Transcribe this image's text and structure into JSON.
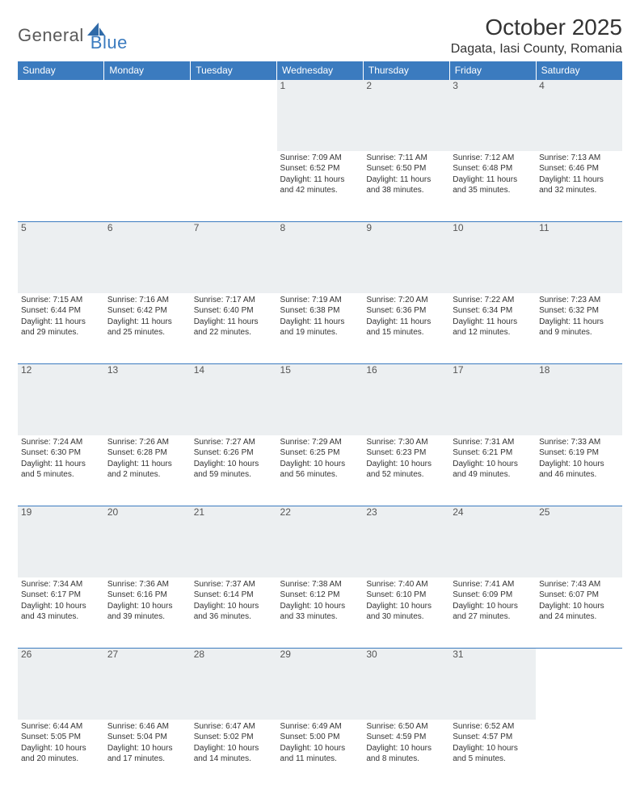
{
  "logo": {
    "general": "General",
    "blue": "Blue"
  },
  "title": "October 2025",
  "location": "Dagata, Iasi County, Romania",
  "colors": {
    "header_bg": "#3b7bbf",
    "header_text": "#ffffff",
    "daynum_bg": "#eceff1",
    "border": "#3b7bbf",
    "body_text": "#333333",
    "logo_gray": "#5a5a5a",
    "logo_blue": "#3b7bbf",
    "background": "#ffffff"
  },
  "typography": {
    "title_fontsize": 28,
    "location_fontsize": 16,
    "dayheader_fontsize": 12,
    "daynum_fontsize": 12,
    "cell_fontsize": 10
  },
  "day_headers": [
    "Sunday",
    "Monday",
    "Tuesday",
    "Wednesday",
    "Thursday",
    "Friday",
    "Saturday"
  ],
  "weeks": [
    {
      "nums": [
        "",
        "",
        "",
        "1",
        "2",
        "3",
        "4"
      ],
      "cells": [
        "",
        "",
        "",
        "Sunrise: 7:09 AM\nSunset: 6:52 PM\nDaylight: 11 hours and 42 minutes.",
        "Sunrise: 7:11 AM\nSunset: 6:50 PM\nDaylight: 11 hours and 38 minutes.",
        "Sunrise: 7:12 AM\nSunset: 6:48 PM\nDaylight: 11 hours and 35 minutes.",
        "Sunrise: 7:13 AM\nSunset: 6:46 PM\nDaylight: 11 hours and 32 minutes."
      ]
    },
    {
      "nums": [
        "5",
        "6",
        "7",
        "8",
        "9",
        "10",
        "11"
      ],
      "cells": [
        "Sunrise: 7:15 AM\nSunset: 6:44 PM\nDaylight: 11 hours and 29 minutes.",
        "Sunrise: 7:16 AM\nSunset: 6:42 PM\nDaylight: 11 hours and 25 minutes.",
        "Sunrise: 7:17 AM\nSunset: 6:40 PM\nDaylight: 11 hours and 22 minutes.",
        "Sunrise: 7:19 AM\nSunset: 6:38 PM\nDaylight: 11 hours and 19 minutes.",
        "Sunrise: 7:20 AM\nSunset: 6:36 PM\nDaylight: 11 hours and 15 minutes.",
        "Sunrise: 7:22 AM\nSunset: 6:34 PM\nDaylight: 11 hours and 12 minutes.",
        "Sunrise: 7:23 AM\nSunset: 6:32 PM\nDaylight: 11 hours and 9 minutes."
      ]
    },
    {
      "nums": [
        "12",
        "13",
        "14",
        "15",
        "16",
        "17",
        "18"
      ],
      "cells": [
        "Sunrise: 7:24 AM\nSunset: 6:30 PM\nDaylight: 11 hours and 5 minutes.",
        "Sunrise: 7:26 AM\nSunset: 6:28 PM\nDaylight: 11 hours and 2 minutes.",
        "Sunrise: 7:27 AM\nSunset: 6:26 PM\nDaylight: 10 hours and 59 minutes.",
        "Sunrise: 7:29 AM\nSunset: 6:25 PM\nDaylight: 10 hours and 56 minutes.",
        "Sunrise: 7:30 AM\nSunset: 6:23 PM\nDaylight: 10 hours and 52 minutes.",
        "Sunrise: 7:31 AM\nSunset: 6:21 PM\nDaylight: 10 hours and 49 minutes.",
        "Sunrise: 7:33 AM\nSunset: 6:19 PM\nDaylight: 10 hours and 46 minutes."
      ]
    },
    {
      "nums": [
        "19",
        "20",
        "21",
        "22",
        "23",
        "24",
        "25"
      ],
      "cells": [
        "Sunrise: 7:34 AM\nSunset: 6:17 PM\nDaylight: 10 hours and 43 minutes.",
        "Sunrise: 7:36 AM\nSunset: 6:16 PM\nDaylight: 10 hours and 39 minutes.",
        "Sunrise: 7:37 AM\nSunset: 6:14 PM\nDaylight: 10 hours and 36 minutes.",
        "Sunrise: 7:38 AM\nSunset: 6:12 PM\nDaylight: 10 hours and 33 minutes.",
        "Sunrise: 7:40 AM\nSunset: 6:10 PM\nDaylight: 10 hours and 30 minutes.",
        "Sunrise: 7:41 AM\nSunset: 6:09 PM\nDaylight: 10 hours and 27 minutes.",
        "Sunrise: 7:43 AM\nSunset: 6:07 PM\nDaylight: 10 hours and 24 minutes."
      ]
    },
    {
      "nums": [
        "26",
        "27",
        "28",
        "29",
        "30",
        "31",
        ""
      ],
      "cells": [
        "Sunrise: 6:44 AM\nSunset: 5:05 PM\nDaylight: 10 hours and 20 minutes.",
        "Sunrise: 6:46 AM\nSunset: 5:04 PM\nDaylight: 10 hours and 17 minutes.",
        "Sunrise: 6:47 AM\nSunset: 5:02 PM\nDaylight: 10 hours and 14 minutes.",
        "Sunrise: 6:49 AM\nSunset: 5:00 PM\nDaylight: 10 hours and 11 minutes.",
        "Sunrise: 6:50 AM\nSunset: 4:59 PM\nDaylight: 10 hours and 8 minutes.",
        "Sunrise: 6:52 AM\nSunset: 4:57 PM\nDaylight: 10 hours and 5 minutes.",
        ""
      ]
    }
  ]
}
